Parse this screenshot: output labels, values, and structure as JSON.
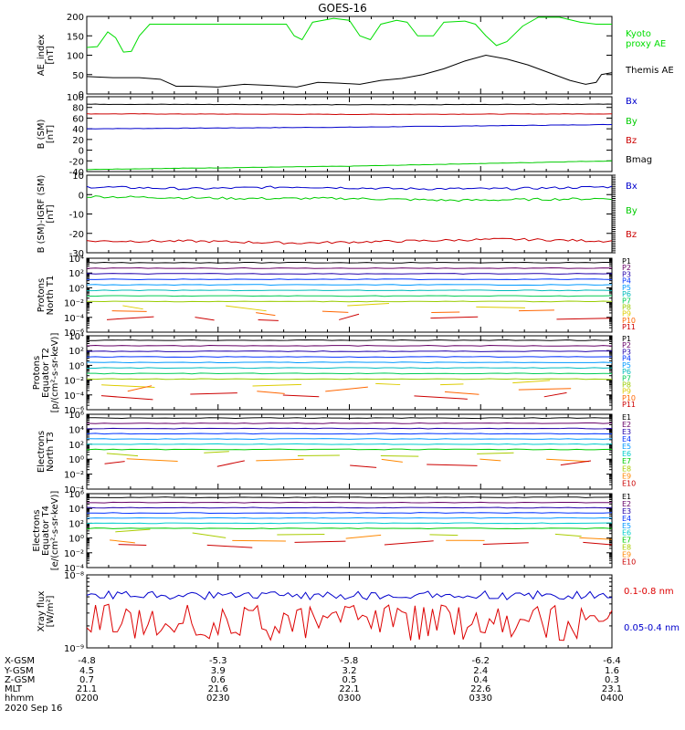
{
  "title": "GOES-16",
  "date": "2020 Sep 16",
  "chart_data": [
    {
      "type": "line",
      "panel": "ae",
      "ylabel": [
        "AE_index",
        "[nT]"
      ],
      "ylim": [
        0,
        200
      ],
      "yticks": [
        0,
        50,
        100,
        150,
        200
      ],
      "series": [
        {
          "name": "Kyoto\nproxy AE",
          "color": "#00dd00",
          "points": [
            [
              0,
              120
            ],
            [
              0.02,
              122
            ],
            [
              0.04,
              160
            ],
            [
              0.055,
              145
            ],
            [
              0.07,
              108
            ],
            [
              0.085,
              110
            ],
            [
              0.1,
              150
            ],
            [
              0.12,
              180
            ],
            [
              0.2,
              180
            ],
            [
              0.3,
              180
            ],
            [
              0.38,
              180
            ],
            [
              0.395,
              150
            ],
            [
              0.41,
              140
            ],
            [
              0.43,
              185
            ],
            [
              0.47,
              195
            ],
            [
              0.5,
              190
            ],
            [
              0.52,
              150
            ],
            [
              0.54,
              140
            ],
            [
              0.56,
              180
            ],
            [
              0.59,
              190
            ],
            [
              0.61,
              185
            ],
            [
              0.63,
              150
            ],
            [
              0.66,
              150
            ],
            [
              0.68,
              185
            ],
            [
              0.72,
              188
            ],
            [
              0.74,
              180
            ],
            [
              0.76,
              150
            ],
            [
              0.78,
              125
            ],
            [
              0.8,
              135
            ],
            [
              0.83,
              175
            ],
            [
              0.86,
              198
            ],
            [
              0.9,
              198
            ],
            [
              0.94,
              185
            ],
            [
              0.97,
              180
            ],
            [
              1,
              180
            ]
          ]
        },
        {
          "name": "Themis AE",
          "color": "#000000",
          "points": [
            [
              0,
              45
            ],
            [
              0.05,
              42
            ],
            [
              0.1,
              42
            ],
            [
              0.14,
              38
            ],
            [
              0.17,
              20
            ],
            [
              0.2,
              20
            ],
            [
              0.25,
              18
            ],
            [
              0.3,
              25
            ],
            [
              0.35,
              22
            ],
            [
              0.4,
              18
            ],
            [
              0.44,
              30
            ],
            [
              0.48,
              28
            ],
            [
              0.52,
              25
            ],
            [
              0.56,
              35
            ],
            [
              0.6,
              40
            ],
            [
              0.64,
              50
            ],
            [
              0.68,
              65
            ],
            [
              0.72,
              85
            ],
            [
              0.76,
              100
            ],
            [
              0.8,
              90
            ],
            [
              0.84,
              75
            ],
            [
              0.88,
              55
            ],
            [
              0.92,
              35
            ],
            [
              0.95,
              25
            ],
            [
              0.97,
              30
            ],
            [
              0.98,
              50
            ],
            [
              1,
              55
            ]
          ]
        }
      ]
    },
    {
      "type": "line",
      "panel": "bsm",
      "ylabel": [
        "B (SM)",
        "[nT]"
      ],
      "ylim": [
        -40,
        100
      ],
      "yticks": [
        -40,
        -20,
        0,
        20,
        40,
        60,
        80,
        100
      ],
      "series": [
        {
          "name": "Bx",
          "color": "#0000cc",
          "points": [
            [
              0,
              40
            ],
            [
              0.5,
              43
            ],
            [
              1,
              48
            ]
          ]
        },
        {
          "name": "By",
          "color": "#00cc00",
          "points": [
            [
              0,
              -36
            ],
            [
              0.5,
              -30
            ],
            [
              1,
              -20
            ]
          ]
        },
        {
          "name": "Bz",
          "color": "#cc0000",
          "points": [
            [
              0,
              68
            ],
            [
              0.5,
              67
            ],
            [
              1,
              68
            ]
          ]
        },
        {
          "name": "Bmag",
          "color": "#000000",
          "points": [
            [
              0,
              86
            ],
            [
              0.5,
              85
            ],
            [
              1,
              86
            ]
          ]
        }
      ]
    },
    {
      "type": "line",
      "panel": "bigrf",
      "ylabel": [
        "B (SM)-IGRF (SM)",
        "[nT]"
      ],
      "ylim": [
        -30,
        10
      ],
      "yticks": [
        -30,
        -20,
        -10,
        0,
        10
      ],
      "series": [
        {
          "name": "Bx",
          "color": "#0000cc",
          "points": [
            [
              0,
              4
            ],
            [
              0.2,
              3
            ],
            [
              0.4,
              4
            ],
            [
              0.6,
              3
            ],
            [
              0.8,
              3
            ],
            [
              1,
              4
            ]
          ]
        },
        {
          "name": "By",
          "color": "#00cc00",
          "points": [
            [
              0,
              -1
            ],
            [
              0.3,
              -2
            ],
            [
              0.5,
              -2
            ],
            [
              0.7,
              -3
            ],
            [
              1,
              -2
            ]
          ]
        },
        {
          "name": "Bz",
          "color": "#cc0000",
          "points": [
            [
              0,
              -24
            ],
            [
              0.2,
              -24
            ],
            [
              0.4,
              -25
            ],
            [
              0.6,
              -24
            ],
            [
              0.8,
              -23
            ],
            [
              1,
              -24
            ]
          ]
        }
      ]
    },
    {
      "type": "line",
      "panel": "protons_t1",
      "ylabel": [
        "Protons",
        "North T1"
      ],
      "yticks": [
        "10⁻⁶",
        "10⁻⁴",
        "10⁻²",
        "10⁰",
        "10²",
        "10⁴"
      ],
      "legend": [
        "P1",
        "P2",
        "P3",
        "P4",
        "P5",
        "P6",
        "P7",
        "P8",
        "P9",
        "P10",
        "P11"
      ]
    },
    {
      "type": "line",
      "panel": "protons_t2",
      "ylabel": [
        "Protons",
        "Equator T2",
        "[p/(cm²-s-sr-keV)]"
      ],
      "yticks": [
        "10⁻⁶",
        "10⁻⁴",
        "10⁻²",
        "10⁰",
        "10²",
        "10⁴"
      ],
      "legend": [
        "P1",
        "P2",
        "P3",
        "P4",
        "P5",
        "P6",
        "P7",
        "P8",
        "P9",
        "P10",
        "P11"
      ]
    },
    {
      "type": "line",
      "panel": "electrons_t3",
      "ylabel": [
        "Electrons",
        "North T3"
      ],
      "yticks": [
        "10⁻⁴",
        "10⁻²",
        "10⁰",
        "10²",
        "10⁴",
        "10⁶"
      ],
      "legend": [
        "E1",
        "E2",
        "E3",
        "E4",
        "E5",
        "E6",
        "E7",
        "E8",
        "E9",
        "E10"
      ]
    },
    {
      "type": "line",
      "panel": "electrons_t4",
      "ylabel": [
        "Electrons",
        "Equator T4",
        "[e/(cm²-s-sr-keV)]"
      ],
      "yticks": [
        "10⁻⁴",
        "10⁻²",
        "10⁰",
        "10²",
        "10⁴",
        "10⁶"
      ],
      "legend": [
        "E1",
        "E2",
        "E3",
        "E4",
        "E5",
        "E6",
        "E7",
        "E8",
        "E9",
        "E10"
      ]
    },
    {
      "type": "line",
      "panel": "xray",
      "ylabel": [
        "Xray flux",
        "[W/m²]"
      ],
      "yticks": [
        "10⁻⁹",
        "10⁻⁸"
      ],
      "legend": [
        {
          "name": "0.1-0.8 nm",
          "color": "#dd0000"
        },
        {
          "name": "0.05-0.4 nm",
          "color": "#0000cc"
        }
      ]
    }
  ],
  "footer": {
    "row_labels": [
      "X-GSM",
      "Y-GSM",
      "Z-GSM",
      "MLT",
      "hhmm"
    ],
    "columns": [
      [
        "-4.8",
        "4.5",
        "0.7",
        "21.1",
        "0200"
      ],
      [
        "-5.3",
        "3.9",
        "0.6",
        "21.6",
        "0230"
      ],
      [
        "-5.8",
        "3.2",
        "0.5",
        "22.1",
        "0300"
      ],
      [
        "-6.2",
        "2.4",
        "0.4",
        "22.6",
        "0330"
      ],
      [
        "-6.4",
        "1.6",
        "0.3",
        "23.1",
        "0400"
      ]
    ]
  }
}
